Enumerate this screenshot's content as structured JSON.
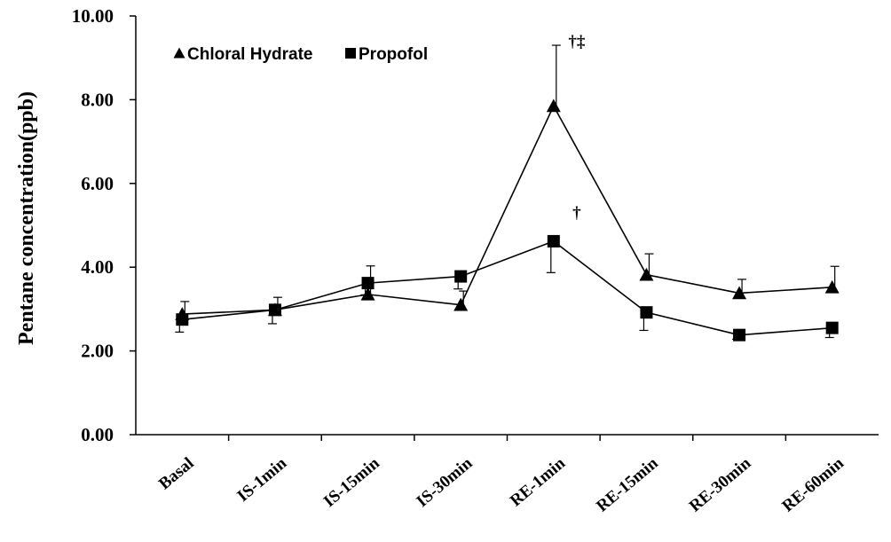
{
  "chart_data": {
    "type": "line",
    "title": "",
    "xlabel": "",
    "ylabel": "Pentane concentration(ppb)",
    "categories": [
      "Basal",
      "IS-1min",
      "IS-15min",
      "IS-30min",
      "RE-1min",
      "RE-15min",
      "RE-30min",
      "RE-60min"
    ],
    "y_ticks": [
      "0.00",
      "2.00",
      "4.00",
      "6.00",
      "8.00",
      "10.00"
    ],
    "ylim": [
      0,
      10
    ],
    "grid": false,
    "legend_position": "top-left",
    "series": [
      {
        "name": "Chloral Hydrate",
        "marker": "triangle",
        "values": [
          2.88,
          2.98,
          3.35,
          3.1,
          7.85,
          3.82,
          3.38,
          3.52
        ],
        "error": [
          0.3,
          0.3,
          0.68,
          0.33,
          1.45,
          0.5,
          0.33,
          0.5
        ]
      },
      {
        "name": "Propofol",
        "marker": "square",
        "values": [
          2.75,
          2.98,
          3.62,
          3.78,
          4.62,
          2.92,
          2.38,
          2.55
        ],
        "error": [
          0.3,
          0.33,
          0.28,
          0.3,
          0.75,
          0.43,
          0.1,
          0.23
        ]
      }
    ],
    "annotations": [
      {
        "text": "†‡",
        "category": "RE-1min",
        "series": "Chloral Hydrate"
      },
      {
        "text": "†",
        "category": "RE-1min",
        "series": "Propofol"
      }
    ],
    "colors": {
      "line": "#000000",
      "background": "#ffffff"
    }
  }
}
